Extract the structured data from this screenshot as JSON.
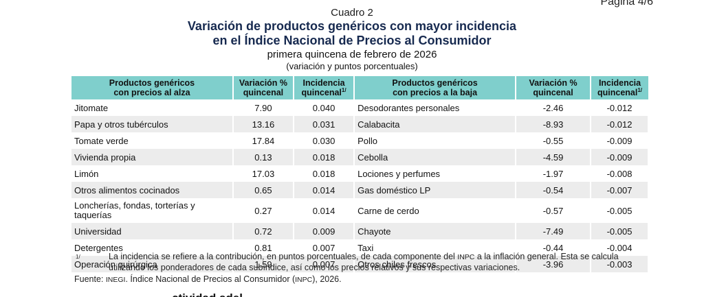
{
  "page_label": "Página 4/6",
  "header": {
    "cuadro": "Cuadro 2",
    "title_line1": "Variación de productos genéricos con mayor incidencia",
    "title_line2": "en el Índice Nacional de Precios al Consumidor",
    "subtitle": "primera quincena de febrero de 2026",
    "units": "(variación y puntos porcentuales)"
  },
  "table": {
    "headers": {
      "up_product_l1": "Productos genéricos",
      "up_product_l2": "con precios al alza",
      "up_var_l1": "Variación %",
      "up_var_l2": "quincenal",
      "up_inc_l1": "Incidencia",
      "up_inc_l2": "quincenal",
      "down_product_l1": "Productos genéricos",
      "down_product_l2": "con precios a la baja",
      "down_var_l1": "Variación %",
      "down_var_l2": "quincenal",
      "down_inc_l1": "Incidencia",
      "down_inc_l2": "quincenal",
      "footnote_mark": "1/"
    },
    "rows": [
      {
        "up_name": "Jitomate",
        "up_var": "7.90",
        "up_inc": "0.040",
        "down_name": "Desodorantes personales",
        "down_var": "-2.46",
        "down_inc": "-0.012"
      },
      {
        "up_name": "Papa y otros tubérculos",
        "up_var": "13.16",
        "up_inc": "0.031",
        "down_name": "Calabacita",
        "down_var": "-8.93",
        "down_inc": "-0.012"
      },
      {
        "up_name": "Tomate verde",
        "up_var": "17.84",
        "up_inc": "0.030",
        "down_name": "Pollo",
        "down_var": "-0.55",
        "down_inc": "-0.009"
      },
      {
        "up_name": "Vivienda propia",
        "up_var": "0.13",
        "up_inc": "0.018",
        "down_name": "Cebolla",
        "down_var": "-4.59",
        "down_inc": "-0.009"
      },
      {
        "up_name": "Limón",
        "up_var": "17.03",
        "up_inc": "0.018",
        "down_name": "Lociones y perfumes",
        "down_var": "-1.97",
        "down_inc": "-0.008"
      },
      {
        "up_name": "Otros alimentos cocinados",
        "up_var": "0.65",
        "up_inc": "0.014",
        "down_name": "Gas doméstico LP",
        "down_var": "-0.54",
        "down_inc": "-0.007"
      },
      {
        "up_name": "Loncherías, fondas, torterías y taquerías",
        "up_var": "0.27",
        "up_inc": "0.014",
        "down_name": "Carne de cerdo",
        "down_var": "-0.57",
        "down_inc": "-0.005"
      },
      {
        "up_name": "Universidad",
        "up_var": "0.72",
        "up_inc": "0.009",
        "down_name": "Chayote",
        "down_var": "-7.49",
        "down_inc": "-0.005"
      },
      {
        "up_name": "Detergentes",
        "up_var": "0.81",
        "up_inc": "0.007",
        "down_name": "Taxi",
        "down_var": "-0.44",
        "down_inc": "-0.004"
      },
      {
        "up_name": "Operación quirúrgica",
        "up_var": "1.59",
        "up_inc": "0.007",
        "down_name": "Otros chiles frescos",
        "down_var": "-3.96",
        "down_inc": "-0.003"
      }
    ]
  },
  "note": {
    "mark": "1/",
    "text_part1": "La incidencia se refiere a la contribución, en puntos porcentuales, de cada componente del ",
    "inpc_abbr": "INPC",
    "text_part2": " a la inflación general. Esta se calcula utilizando los ponderadores de cada subíndice, así como los precios relativos y sus respectivas variaciones."
  },
  "source": {
    "label": "Fuente: ",
    "org": "INEGI",
    "text_part1": ". Índice Nacional de Precios al Consumidor (",
    "abbr": "INPC",
    "text_part2": "), 2026."
  },
  "cut_heading": "ctividad adel"
}
